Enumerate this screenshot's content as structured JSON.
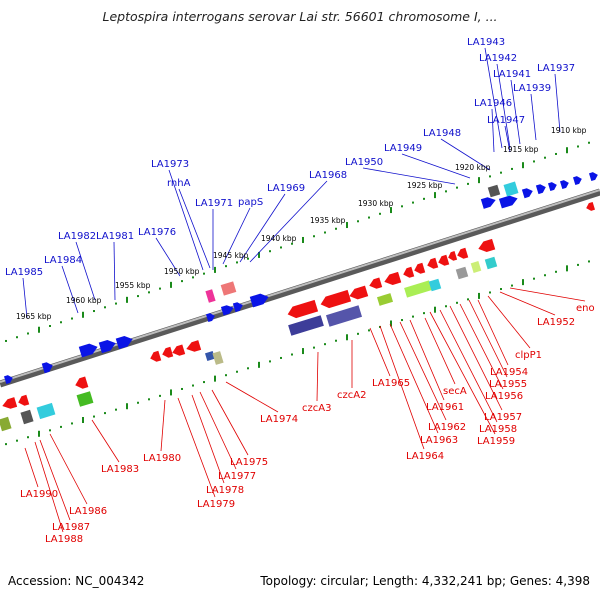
{
  "title": "Leptospira interrogans serovar Lai str. 56601 chromosome I, ...",
  "footer": {
    "accession": "Accession: NC_004342",
    "summary": "Topology: circular; Length: 4,332,241 bp; Genes: 4,398"
  },
  "colors": {
    "plus_strand_label": "#1010cc",
    "minus_strand_label": "#e00000",
    "plus_gene": "#0a14e6",
    "minus_gene": "#ee1111",
    "backbone": "#888888",
    "tick": "#1a8a1a"
  },
  "kbp_ticks": [
    "1910 kbp",
    "1915 kbp",
    "1920 kbp",
    "1925 kbp",
    "1930 kbp",
    "1935 kbp",
    "1940 kbp",
    "1945 kbp",
    "1950 kbp",
    "1955 kbp",
    "1960 kbp",
    "1965 kbp"
  ],
  "plus_labels": [
    "LA1943",
    "LA1942",
    "LA1941",
    "LA1937",
    "LA1939",
    "LA1946",
    "LA1947",
    "LA1948",
    "LA1949",
    "LA1950",
    "LA1973",
    "rnhA",
    "LA1968",
    "LA1969",
    "papS",
    "LA1971",
    "LA1976",
    "LA1982",
    "LA1981",
    "LA1984",
    "LA1985"
  ],
  "minus_labels": [
    "eno",
    "LA1952",
    "clpP1",
    "LA1954",
    "LA1955",
    "LA1956",
    "secA",
    "LA1957",
    "LA1958",
    "LA1959",
    "LA1961",
    "LA1962",
    "LA1963",
    "LA1964",
    "LA1965",
    "czcA2",
    "czcA3",
    "LA1974",
    "LA1975",
    "LA1977",
    "LA1978",
    "LA1979",
    "LA1980",
    "LA1983",
    "LA1986",
    "LA1987",
    "LA1988",
    "LA1990"
  ]
}
